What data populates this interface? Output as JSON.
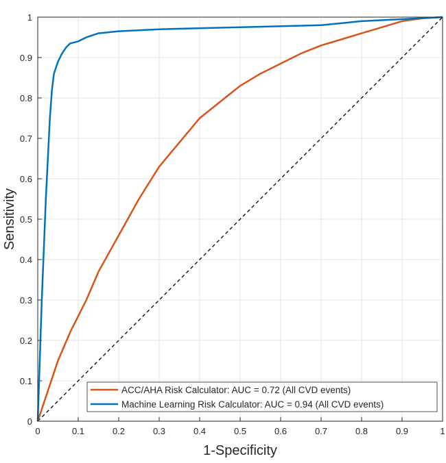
{
  "chart_data": {
    "type": "line",
    "title": "",
    "xlabel": "1-Specificity",
    "ylabel": "Sensitivity",
    "xlim": [
      0,
      1
    ],
    "ylim": [
      0,
      1
    ],
    "xticks": [
      "0",
      "0.1",
      "0.2",
      "0.3",
      "0.4",
      "0.5",
      "0.6",
      "0.7",
      "0.8",
      "0.9",
      "1"
    ],
    "yticks": [
      "0",
      "0.1",
      "0.2",
      "0.3",
      "0.4",
      "0.5",
      "0.6",
      "0.7",
      "0.8",
      "0.9",
      "1"
    ],
    "grid": true,
    "legend_position": "bottom-right",
    "reference_line": {
      "style": "dashed",
      "color": "#000000",
      "x": [
        0,
        1
      ],
      "y": [
        0,
        1
      ]
    },
    "series": [
      {
        "name": "ACC/AHA Risk Calculator: AUC = 0.72 (All CVD events)",
        "color": "#D95319",
        "x": [
          0,
          0.02,
          0.05,
          0.08,
          0.1,
          0.12,
          0.15,
          0.2,
          0.25,
          0.3,
          0.35,
          0.4,
          0.45,
          0.5,
          0.55,
          0.6,
          0.65,
          0.7,
          0.75,
          0.8,
          0.85,
          0.9,
          0.95,
          1
        ],
        "y": [
          0,
          0.06,
          0.15,
          0.22,
          0.26,
          0.3,
          0.37,
          0.46,
          0.55,
          0.63,
          0.69,
          0.75,
          0.79,
          0.83,
          0.86,
          0.885,
          0.91,
          0.93,
          0.945,
          0.96,
          0.975,
          0.99,
          0.997,
          1
        ]
      },
      {
        "name": "Machine Learning Risk Calculator: AUC = 0.94 (All CVD events)",
        "color": "#0072BD",
        "x": [
          0,
          0.01,
          0.02,
          0.03,
          0.035,
          0.04,
          0.05,
          0.06,
          0.07,
          0.08,
          0.1,
          0.12,
          0.15,
          0.2,
          0.3,
          0.5,
          0.7,
          0.8,
          0.9,
          1
        ],
        "y": [
          0,
          0.3,
          0.55,
          0.75,
          0.82,
          0.86,
          0.89,
          0.91,
          0.925,
          0.935,
          0.94,
          0.95,
          0.96,
          0.965,
          0.97,
          0.975,
          0.98,
          0.99,
          0.995,
          1
        ]
      }
    ]
  }
}
